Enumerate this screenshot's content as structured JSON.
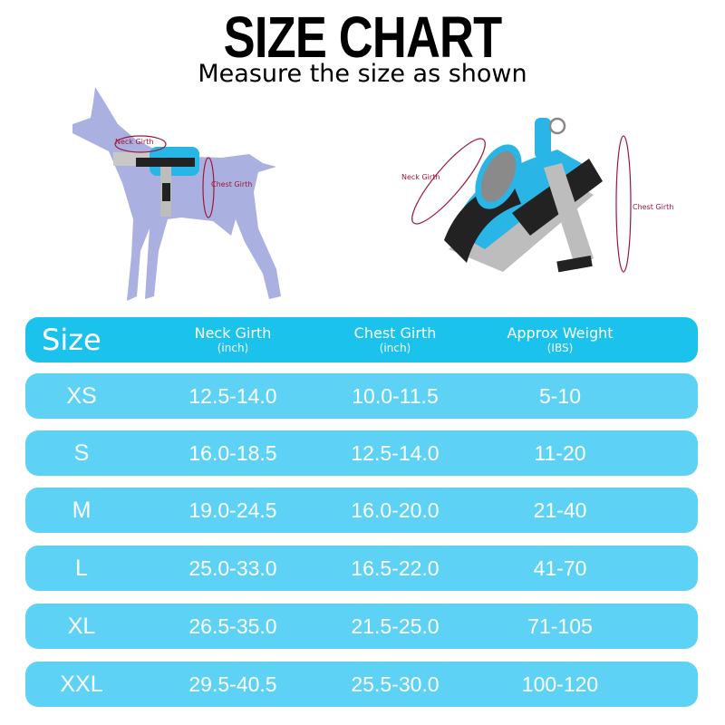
{
  "header": {
    "title": "SIZE CHART",
    "subtitle": "Measure the size as shown"
  },
  "illustrations": {
    "dog": {
      "neck_label": "Neck Girth",
      "chest_label": "Chest Girth"
    },
    "harness": {
      "neck_label": "Neck Girth",
      "chest_label": "Chest Girth"
    }
  },
  "colors": {
    "header_row": "#1bc2eb",
    "data_row": "#5dd2f5",
    "dog_silhouette": "#aab0e0",
    "harness": "#29b6e6",
    "measure_line": "#a0173b"
  },
  "table": {
    "columns": [
      {
        "label": "Size",
        "unit": ""
      },
      {
        "label": "Neck Girth",
        "unit": "(inch)"
      },
      {
        "label": "Chest Girth",
        "unit": "(inch)"
      },
      {
        "label": "Approx Weight",
        "unit": "(IBS)"
      }
    ],
    "rows": [
      [
        "XS",
        "12.5-14.0",
        "10.0-11.5",
        "5-10"
      ],
      [
        "S",
        "16.0-18.5",
        "12.5-14.0",
        "11-20"
      ],
      [
        "M",
        "19.0-24.5",
        "16.0-20.0",
        "21-40"
      ],
      [
        "L",
        "25.0-33.0",
        "16.5-22.0",
        "41-70"
      ],
      [
        "XL",
        "26.5-35.0",
        "21.5-25.0",
        "71-105"
      ],
      [
        "XXL",
        "29.5-40.5",
        "25.5-30.0",
        "100-120"
      ]
    ]
  }
}
